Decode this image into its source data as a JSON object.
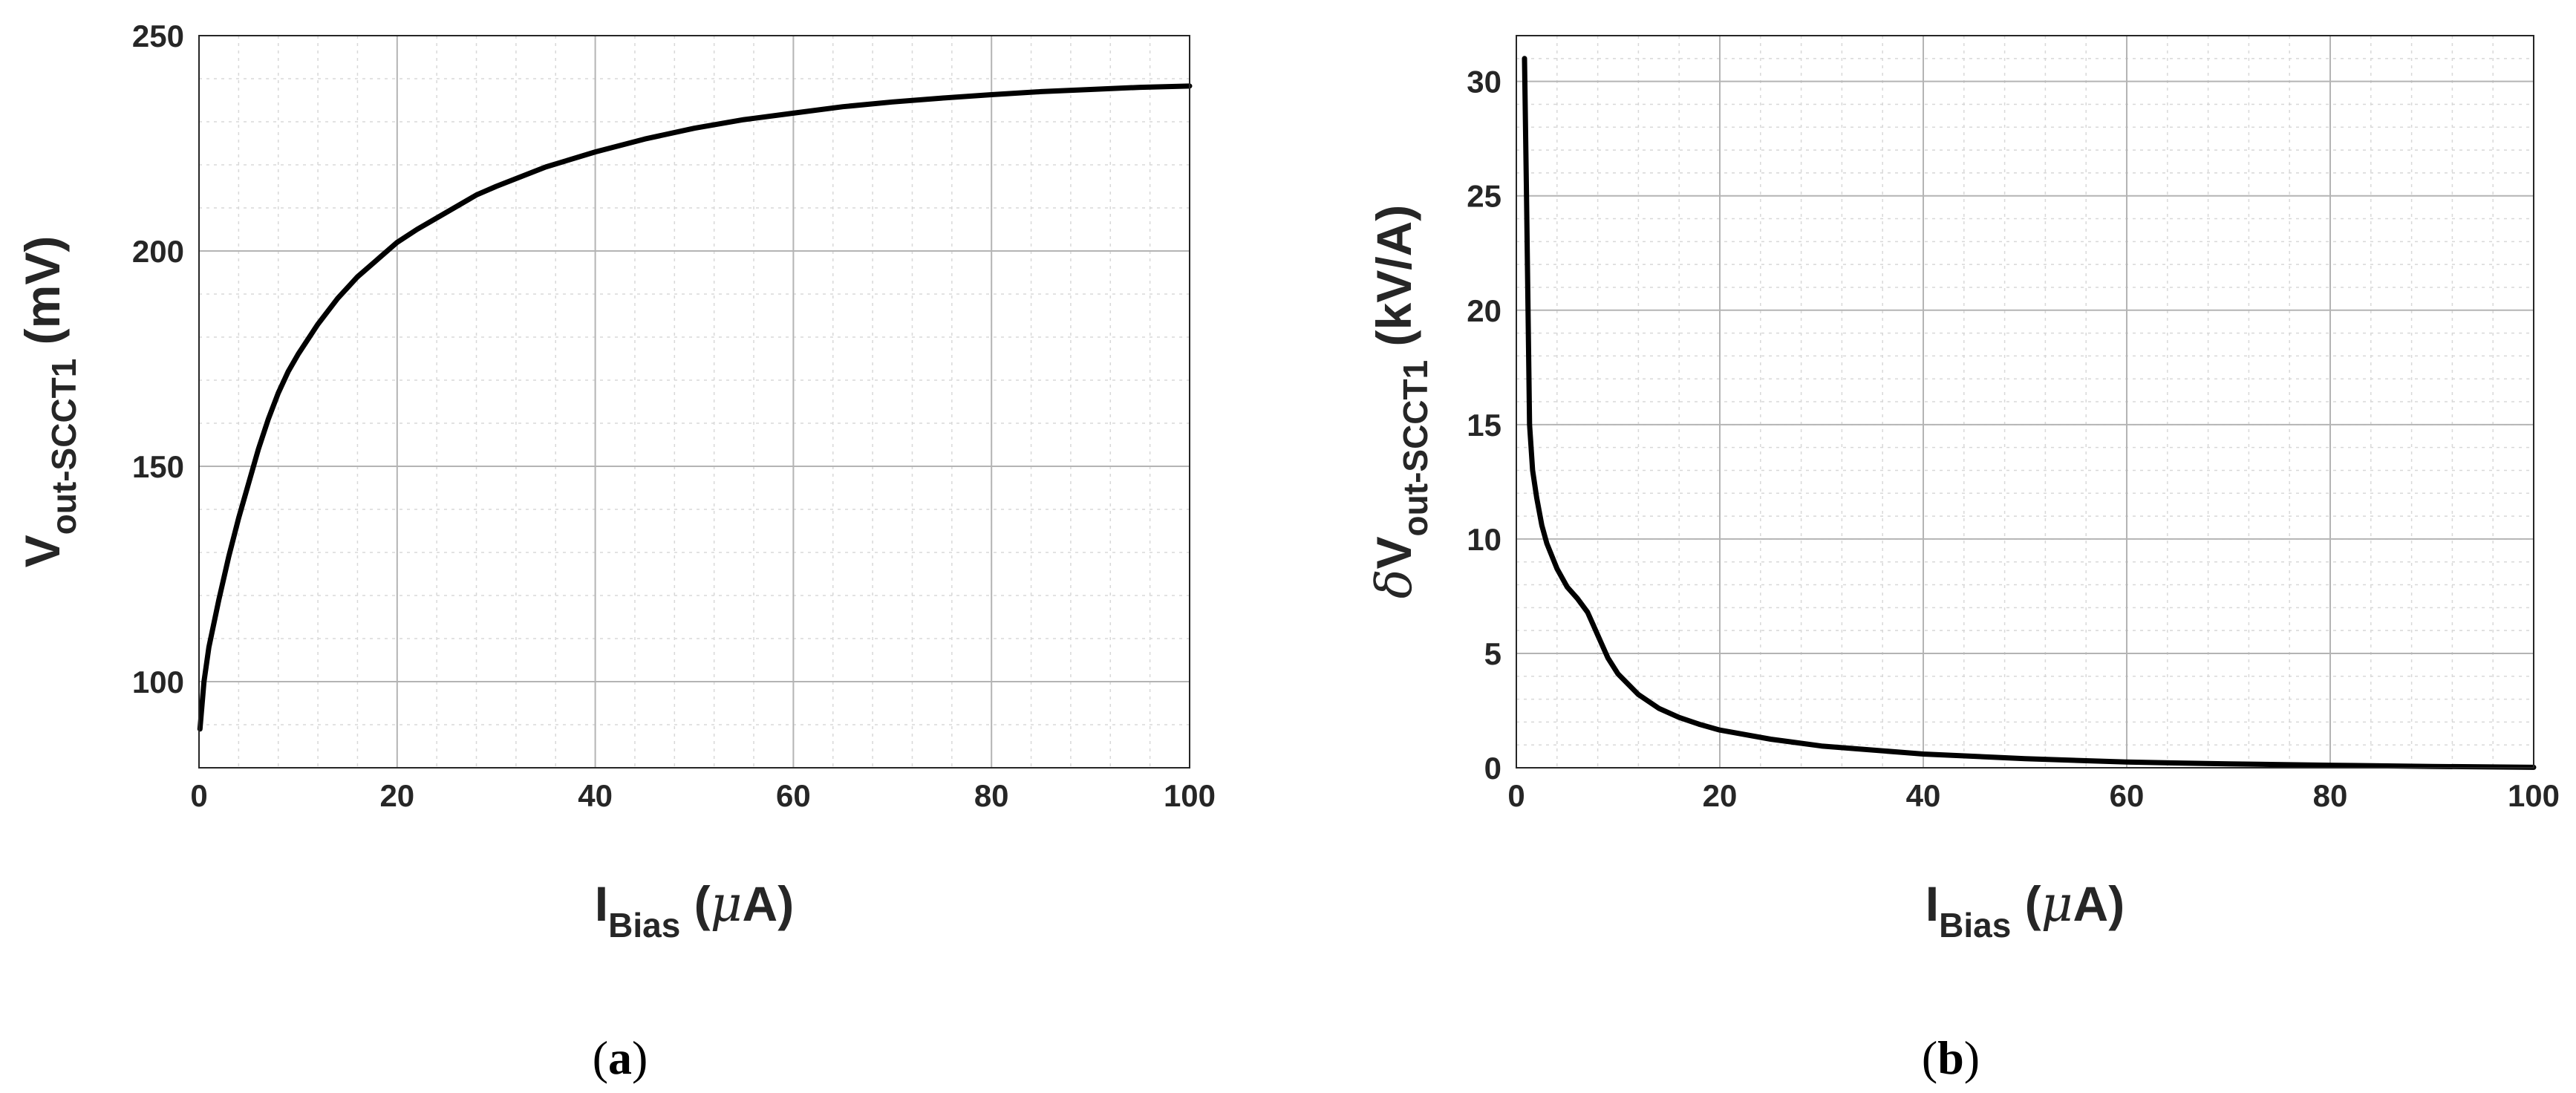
{
  "chart_data": [
    {
      "panel": "a",
      "type": "line",
      "panel_label": {
        "open": "(",
        "letter": "a",
        "close": ")"
      },
      "xlabel": {
        "main": "I",
        "sub": "Bias",
        "unit": " (",
        "greek": "μ",
        "unit_end": "A)"
      },
      "ylabel": {
        "main": "V",
        "sub": "out-SCCT1",
        "unit": " (mV)"
      },
      "xlim": [
        0,
        100
      ],
      "ylim": [
        80,
        250
      ],
      "xticks": [
        0,
        20,
        40,
        60,
        80,
        100
      ],
      "yticks": [
        100,
        150,
        200,
        250
      ],
      "grid": true,
      "minor_grid": true,
      "series": [
        {
          "name": "Vout-SCCT1",
          "x": [
            0.1,
            0.5,
            1,
            2,
            3,
            4,
            5,
            6,
            7,
            8,
            9,
            10,
            12,
            14,
            16,
            18,
            20,
            22,
            25,
            28,
            30,
            35,
            40,
            45,
            50,
            55,
            60,
            65,
            70,
            75,
            80,
            85,
            90,
            95,
            100
          ],
          "y": [
            89,
            100,
            108,
            119,
            129,
            138,
            146,
            154,
            161,
            167,
            172,
            176,
            183,
            189,
            194,
            198,
            202,
            205,
            209,
            213,
            215,
            219.5,
            223,
            226,
            228.5,
            230.5,
            232,
            233.5,
            234.6,
            235.5,
            236.3,
            237,
            237.5,
            238,
            238.3
          ]
        }
      ]
    },
    {
      "panel": "b",
      "type": "line",
      "panel_label": {
        "open": "(",
        "letter": "b",
        "close": ")"
      },
      "xlabel": {
        "main": "I",
        "sub": "Bias",
        "unit": " (",
        "greek": "μ",
        "unit_end": "A)"
      },
      "ylabel": {
        "prefix": "δ",
        "main": "V",
        "sub": "out-SCCT1",
        "unit": " (kV/A)"
      },
      "xlim": [
        0,
        100
      ],
      "ylim": [
        0,
        32
      ],
      "xticks": [
        0,
        20,
        40,
        60,
        80,
        100
      ],
      "yticks": [
        0,
        5,
        10,
        15,
        20,
        25,
        30
      ],
      "grid": true,
      "minor_grid": true,
      "series": [
        {
          "name": "dVout-SCCT1",
          "x": [
            0.8,
            1.0,
            1.3,
            1.6,
            2,
            2.5,
            3,
            4,
            5,
            6,
            7,
            7.5,
            8,
            9,
            10,
            12,
            14,
            16,
            18,
            20,
            25,
            30,
            40,
            50,
            60,
            70,
            80,
            90,
            100
          ],
          "y": [
            31,
            25,
            15,
            13,
            11.8,
            10.6,
            9.8,
            8.7,
            7.9,
            7.4,
            6.8,
            6.3,
            5.8,
            4.8,
            4.1,
            3.2,
            2.6,
            2.2,
            1.9,
            1.65,
            1.25,
            0.95,
            0.6,
            0.4,
            0.25,
            0.17,
            0.11,
            0.06,
            0.02
          ]
        }
      ]
    }
  ]
}
